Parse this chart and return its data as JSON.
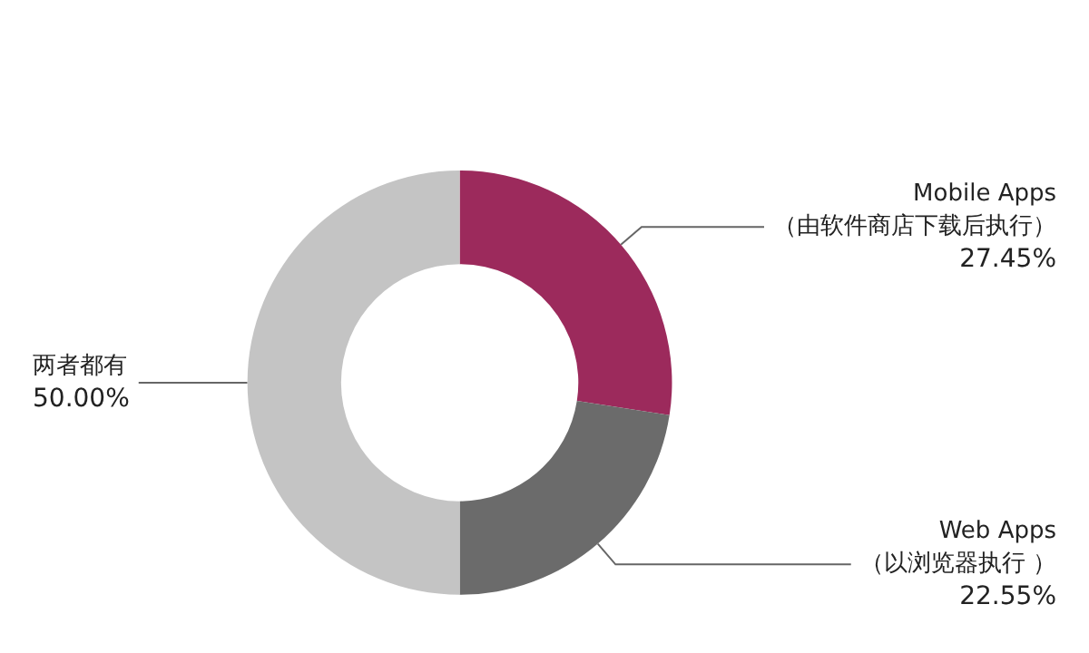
{
  "chart_data": {
    "type": "donut",
    "categories": [
      "Mobile Apps\n（由软件商店下载后执行）",
      "Web Apps\n（以浏览器执行 ）",
      "两者都有"
    ],
    "values": [
      27.45,
      22.55,
      50.0
    ],
    "colors": [
      "#9c2a5c",
      "#6b6b6b",
      "#c4c4c4"
    ],
    "value_labels": [
      "27.45%",
      "22.55%",
      "50.00%"
    ],
    "legend": false
  }
}
